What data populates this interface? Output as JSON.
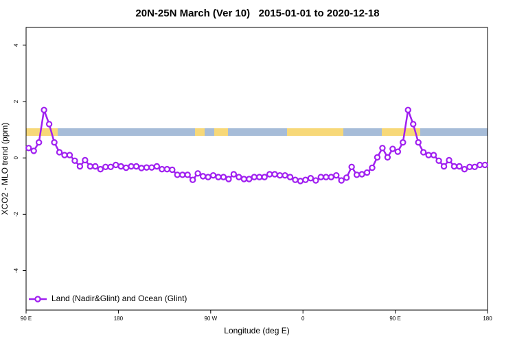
{
  "chart_data": {
    "type": "line",
    "title": "20N-25N March (Ver 10)   2015-01-01 to 2020-12-18",
    "x_label": "Longitude (deg E)",
    "y_label": "XCO2 - MLO trend (ppm)",
    "xlim": [
      90,
      540
    ],
    "ylim": [
      -5.4,
      4.63
    ],
    "xticks": [
      {
        "value": 90,
        "label": "90 E"
      },
      180,
      {
        "value": 270,
        "label": "90 W"
      },
      {
        "value": 360,
        "label": "0"
      },
      {
        "value": 450,
        "label": "90 E"
      },
      {
        "value": 540,
        "label": "180"
      }
    ],
    "yticks": [
      -4,
      -2,
      0,
      2,
      4
    ],
    "legend": "bottom-left",
    "series": [
      {
        "name": "Land (Nadir&Glint) and Ocean (Glint)",
        "color": "#a020f0",
        "x": [
          92.5,
          97.5,
          102.5,
          107.5,
          112.5,
          117.5,
          122.5,
          127.5,
          132.5,
          137.5,
          142.5,
          147.5,
          152.5,
          157.5,
          162.5,
          167.5,
          172.5,
          177.5,
          182.5,
          187.5,
          192.5,
          197.5,
          202.5,
          207.5,
          212.5,
          217.5,
          222.5,
          227.5,
          232.5,
          237.5,
          242.5,
          247.5,
          252.5,
          257.5,
          262.5,
          267.5,
          272.5,
          277.5,
          282.5,
          287.5,
          292.5,
          297.5,
          302.5,
          307.5,
          312.5,
          317.5,
          322.5,
          327.5,
          332.5,
          337.5,
          342.5,
          347.5,
          352.5,
          357.5,
          362.5,
          367.5,
          372.5,
          377.5,
          382.5,
          387.5,
          392.5,
          397.5,
          402.5,
          407.5,
          412.5,
          417.5,
          422.5,
          427.5,
          432.5,
          437.5,
          442.5,
          447.5,
          452.5,
          457.5,
          462.5,
          467.5,
          472.5,
          477.5,
          482.5,
          487.5,
          492.5,
          497.5,
          502.5,
          507.5,
          512.5,
          517.5,
          522.5,
          527.5,
          532.5,
          537.5
        ],
        "values": [
          0.35,
          0.25,
          0.55,
          1.7,
          1.2,
          0.55,
          0.2,
          0.1,
          0.1,
          -0.1,
          -0.3,
          -0.08,
          -0.3,
          -0.3,
          -0.4,
          -0.32,
          -0.32,
          -0.25,
          -0.3,
          -0.35,
          -0.3,
          -0.3,
          -0.36,
          -0.34,
          -0.34,
          -0.3,
          -0.4,
          -0.4,
          -0.42,
          -0.6,
          -0.6,
          -0.6,
          -0.78,
          -0.55,
          -0.65,
          -0.68,
          -0.62,
          -0.68,
          -0.68,
          -0.75,
          -0.58,
          -0.68,
          -0.75,
          -0.75,
          -0.68,
          -0.68,
          -0.68,
          -0.58,
          -0.58,
          -0.62,
          -0.62,
          -0.68,
          -0.78,
          -0.82,
          -0.78,
          -0.72,
          -0.8,
          -0.68,
          -0.68,
          -0.68,
          -0.62,
          -0.8,
          -0.7,
          -0.32,
          -0.6,
          -0.58,
          -0.52,
          -0.35,
          0.02,
          0.35,
          0.02,
          0.32,
          0.22,
          0.55,
          1.7,
          1.2,
          0.55,
          0.2,
          0.1,
          0.1,
          -0.1,
          -0.3,
          -0.08,
          -0.3,
          -0.3,
          -0.4,
          -0.32,
          -0.32,
          -0.25,
          -0.25
        ]
      }
    ]
  }
}
